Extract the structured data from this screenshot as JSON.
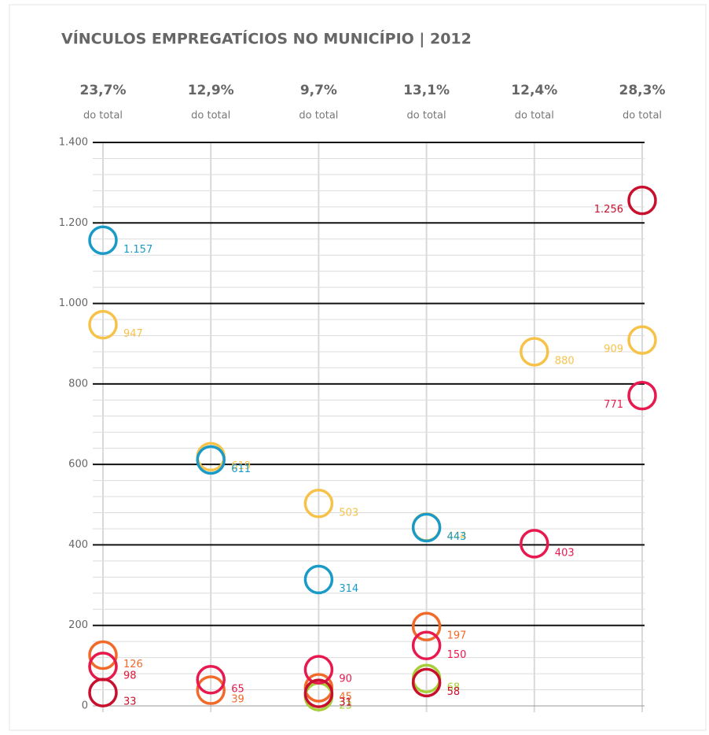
{
  "chart_data": {
    "type": "dot",
    "title": "VÍNCULOS EMPREGATÍCIOS NO MUNICÍPIO | 2012",
    "column_headers": [
      {
        "percent": "23,7%",
        "note": "do total"
      },
      {
        "percent": "12,9%",
        "note": "do total"
      },
      {
        "percent": "9,7%",
        "note": "do total"
      },
      {
        "percent": "13,1%",
        "note": "do total"
      },
      {
        "percent": "12,4%",
        "note": "do total"
      },
      {
        "percent": "28,3%",
        "note": "do total"
      }
    ],
    "categories": [
      null,
      null,
      null,
      null,
      null,
      null
    ],
    "ylim": [
      0,
      1400
    ],
    "yticks": [
      0,
      200,
      400,
      600,
      800,
      {
        "value": 1000,
        "label": "1.000"
      },
      {
        "value": 1200,
        "label": "1.200"
      },
      {
        "value": 1400,
        "label": "1.400"
      }
    ],
    "minor_yticks": [
      40,
      80,
      120,
      160,
      240,
      280,
      320,
      360,
      440,
      480,
      520,
      560,
      640,
      680,
      720,
      760,
      840,
      880,
      920,
      960,
      1040,
      1080,
      1120,
      1160,
      1240,
      1280,
      1320,
      1360
    ],
    "grid": true,
    "series": [
      {
        "color": "#f7c24a",
        "values": [
          947,
          619,
          503,
          444,
          880,
          909
        ],
        "value_labels": [
          "947",
          "619",
          "503",
          "444",
          "880",
          "909"
        ]
      },
      {
        "color": "#1a9bc7",
        "values": [
          1157,
          611,
          314,
          443,
          null,
          null
        ],
        "value_labels": [
          "1.157",
          "611",
          "314",
          "443",
          null,
          null
        ]
      },
      {
        "color": "#f26a2a",
        "values": [
          126,
          39,
          45,
          197,
          null,
          null
        ],
        "value_labels": [
          "126",
          "39",
          "45",
          "197",
          null,
          null
        ]
      },
      {
        "color": "#a6ce39",
        "values": [
          98,
          null,
          23,
          68,
          null,
          null
        ],
        "value_labels": [
          "98",
          null,
          "23",
          "68",
          null,
          null
        ]
      },
      {
        "color": "#e8194f",
        "values": [
          98,
          65,
          90,
          150,
          403,
          771
        ],
        "value_labels": [
          "98",
          "65",
          "90",
          "150",
          "403",
          "771"
        ]
      },
      {
        "color": "#c8102e",
        "values": [
          33,
          null,
          31,
          58,
          null,
          1256
        ],
        "value_labels": [
          "33",
          null,
          "31",
          "58",
          null,
          "1.256"
        ]
      }
    ]
  }
}
